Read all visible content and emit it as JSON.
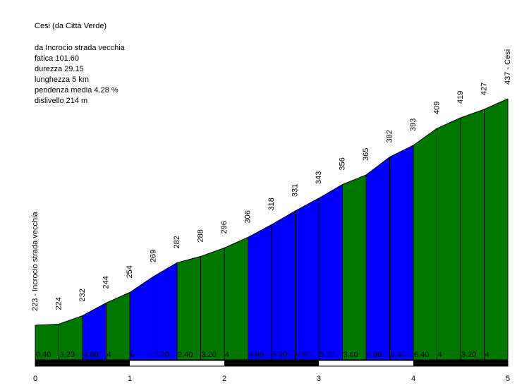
{
  "chart_data": {
    "type": "area",
    "title": "Cesi (da Città Verde)",
    "info": [
      "da Incrocio strada vecchia",
      "fatica 101.60",
      "durezza 29.15",
      "lunghezza 5 km",
      "pendenza media 4.28 %",
      "dislivello 214 m"
    ],
    "start_label": "223 - Incrocio strada vecchia",
    "end_label": "437 - Cesi",
    "x": [
      0,
      0.25,
      0.5,
      0.75,
      1,
      1.25,
      1.5,
      1.75,
      2,
      2.25,
      2.5,
      2.75,
      3,
      3.25,
      3.5,
      3.75,
      4,
      4.25,
      4.5,
      4.75,
      5
    ],
    "altitudes": [
      223,
      224,
      232,
      244,
      254,
      269,
      282,
      288,
      296,
      306,
      318,
      331,
      343,
      356,
      365,
      382,
      393,
      409,
      419,
      427,
      437
    ],
    "altitude_labels": [
      "224",
      "232",
      "244",
      "254",
      "269",
      "282",
      "288",
      "296",
      "306",
      "318",
      "331",
      "343",
      "356",
      "365",
      "382",
      "393",
      "409",
      "419",
      "427"
    ],
    "gradients": [
      "0.40",
      "3.20",
      "4.80",
      "4",
      "6",
      "5.20",
      "2.40",
      "3.20",
      "4",
      "4.80",
      "5.20",
      "4.80",
      "5.20",
      "3.60",
      "6.80",
      "4.40",
      "6.40",
      "4",
      "3.20",
      "4"
    ],
    "segment_colors": [
      "green",
      "green",
      "blue",
      "green",
      "blue",
      "blue",
      "green",
      "green",
      "green",
      "blue",
      "blue",
      "blue",
      "blue",
      "green",
      "blue",
      "blue",
      "green",
      "green",
      "green",
      "green"
    ],
    "colors": {
      "green": "#007800",
      "blue": "#0000ff",
      "scale_dark": "#000000",
      "scale_light": "#ffffff"
    },
    "xticks": [
      "0",
      "1",
      "2",
      "3",
      "4",
      "5"
    ],
    "xlim": [
      0,
      5
    ],
    "ylim_reference": [
      223,
      437
    ],
    "grid": false
  }
}
